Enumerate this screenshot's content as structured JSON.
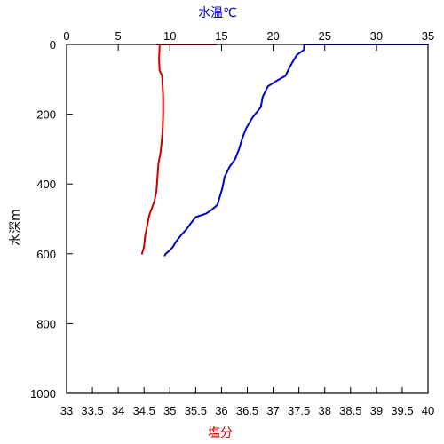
{
  "chart_data": {
    "type": "line",
    "title": "",
    "ylabel": "水深m",
    "y_reversed": true,
    "ylim": [
      0,
      1000
    ],
    "y_ticks": [
      0,
      200,
      400,
      600,
      800,
      1000
    ],
    "grid": false,
    "legend": "none",
    "axes": {
      "bottom": {
        "label": "塩分",
        "label_color": "#cc0000",
        "range": [
          33,
          40
        ],
        "ticks": [
          33,
          33.5,
          34,
          34.5,
          35,
          35.5,
          36,
          36.5,
          37,
          37.5,
          38,
          38.5,
          39,
          39.5,
          40
        ]
      },
      "top": {
        "label": "水温℃",
        "label_color": "#0000cc",
        "range": [
          0,
          35
        ],
        "ticks": [
          0,
          5,
          10,
          15,
          20,
          25,
          30,
          35
        ]
      }
    },
    "series": [
      {
        "axis": "bottom",
        "color": "#cc0000",
        "points": [
          [
            34.75,
            0
          ],
          [
            34.84,
            0
          ],
          [
            35.9,
            0
          ],
          [
            34.8,
            0
          ],
          [
            34.8,
            10
          ],
          [
            34.79,
            40
          ],
          [
            34.8,
            75
          ],
          [
            34.85,
            90
          ],
          [
            34.86,
            120
          ],
          [
            34.87,
            150
          ],
          [
            34.87,
            200
          ],
          [
            34.86,
            250
          ],
          [
            34.84,
            280
          ],
          [
            34.82,
            310
          ],
          [
            34.78,
            340
          ],
          [
            34.76,
            380
          ],
          [
            34.74,
            420
          ],
          [
            34.7,
            450
          ],
          [
            34.65,
            470
          ],
          [
            34.6,
            490
          ],
          [
            34.56,
            520
          ],
          [
            34.52,
            550
          ],
          [
            34.5,
            580
          ],
          [
            34.47,
            595
          ],
          [
            34.46,
            600
          ]
        ]
      },
      {
        "axis": "top",
        "color": "#0000cc",
        "points": [
          [
            35,
            0
          ],
          [
            23.0,
            0
          ],
          [
            23.0,
            15
          ],
          [
            22.3,
            30
          ],
          [
            21.7,
            60
          ],
          [
            21.2,
            90
          ],
          [
            20.3,
            105
          ],
          [
            19.5,
            120
          ],
          [
            19.0,
            150
          ],
          [
            18.8,
            180
          ],
          [
            18.0,
            210
          ],
          [
            17.4,
            240
          ],
          [
            17.0,
            270
          ],
          [
            16.7,
            300
          ],
          [
            16.3,
            330
          ],
          [
            15.8,
            350
          ],
          [
            15.3,
            380
          ],
          [
            15.1,
            410
          ],
          [
            14.8,
            440
          ],
          [
            14.6,
            460
          ],
          [
            14.0,
            475
          ],
          [
            13.5,
            485
          ],
          [
            12.5,
            495
          ],
          [
            12.1,
            510
          ],
          [
            11.6,
            530
          ],
          [
            11.0,
            550
          ],
          [
            10.6,
            565
          ],
          [
            10.3,
            580
          ],
          [
            10.0,
            590
          ],
          [
            9.6,
            600
          ],
          [
            9.5,
            605
          ]
        ]
      }
    ]
  }
}
